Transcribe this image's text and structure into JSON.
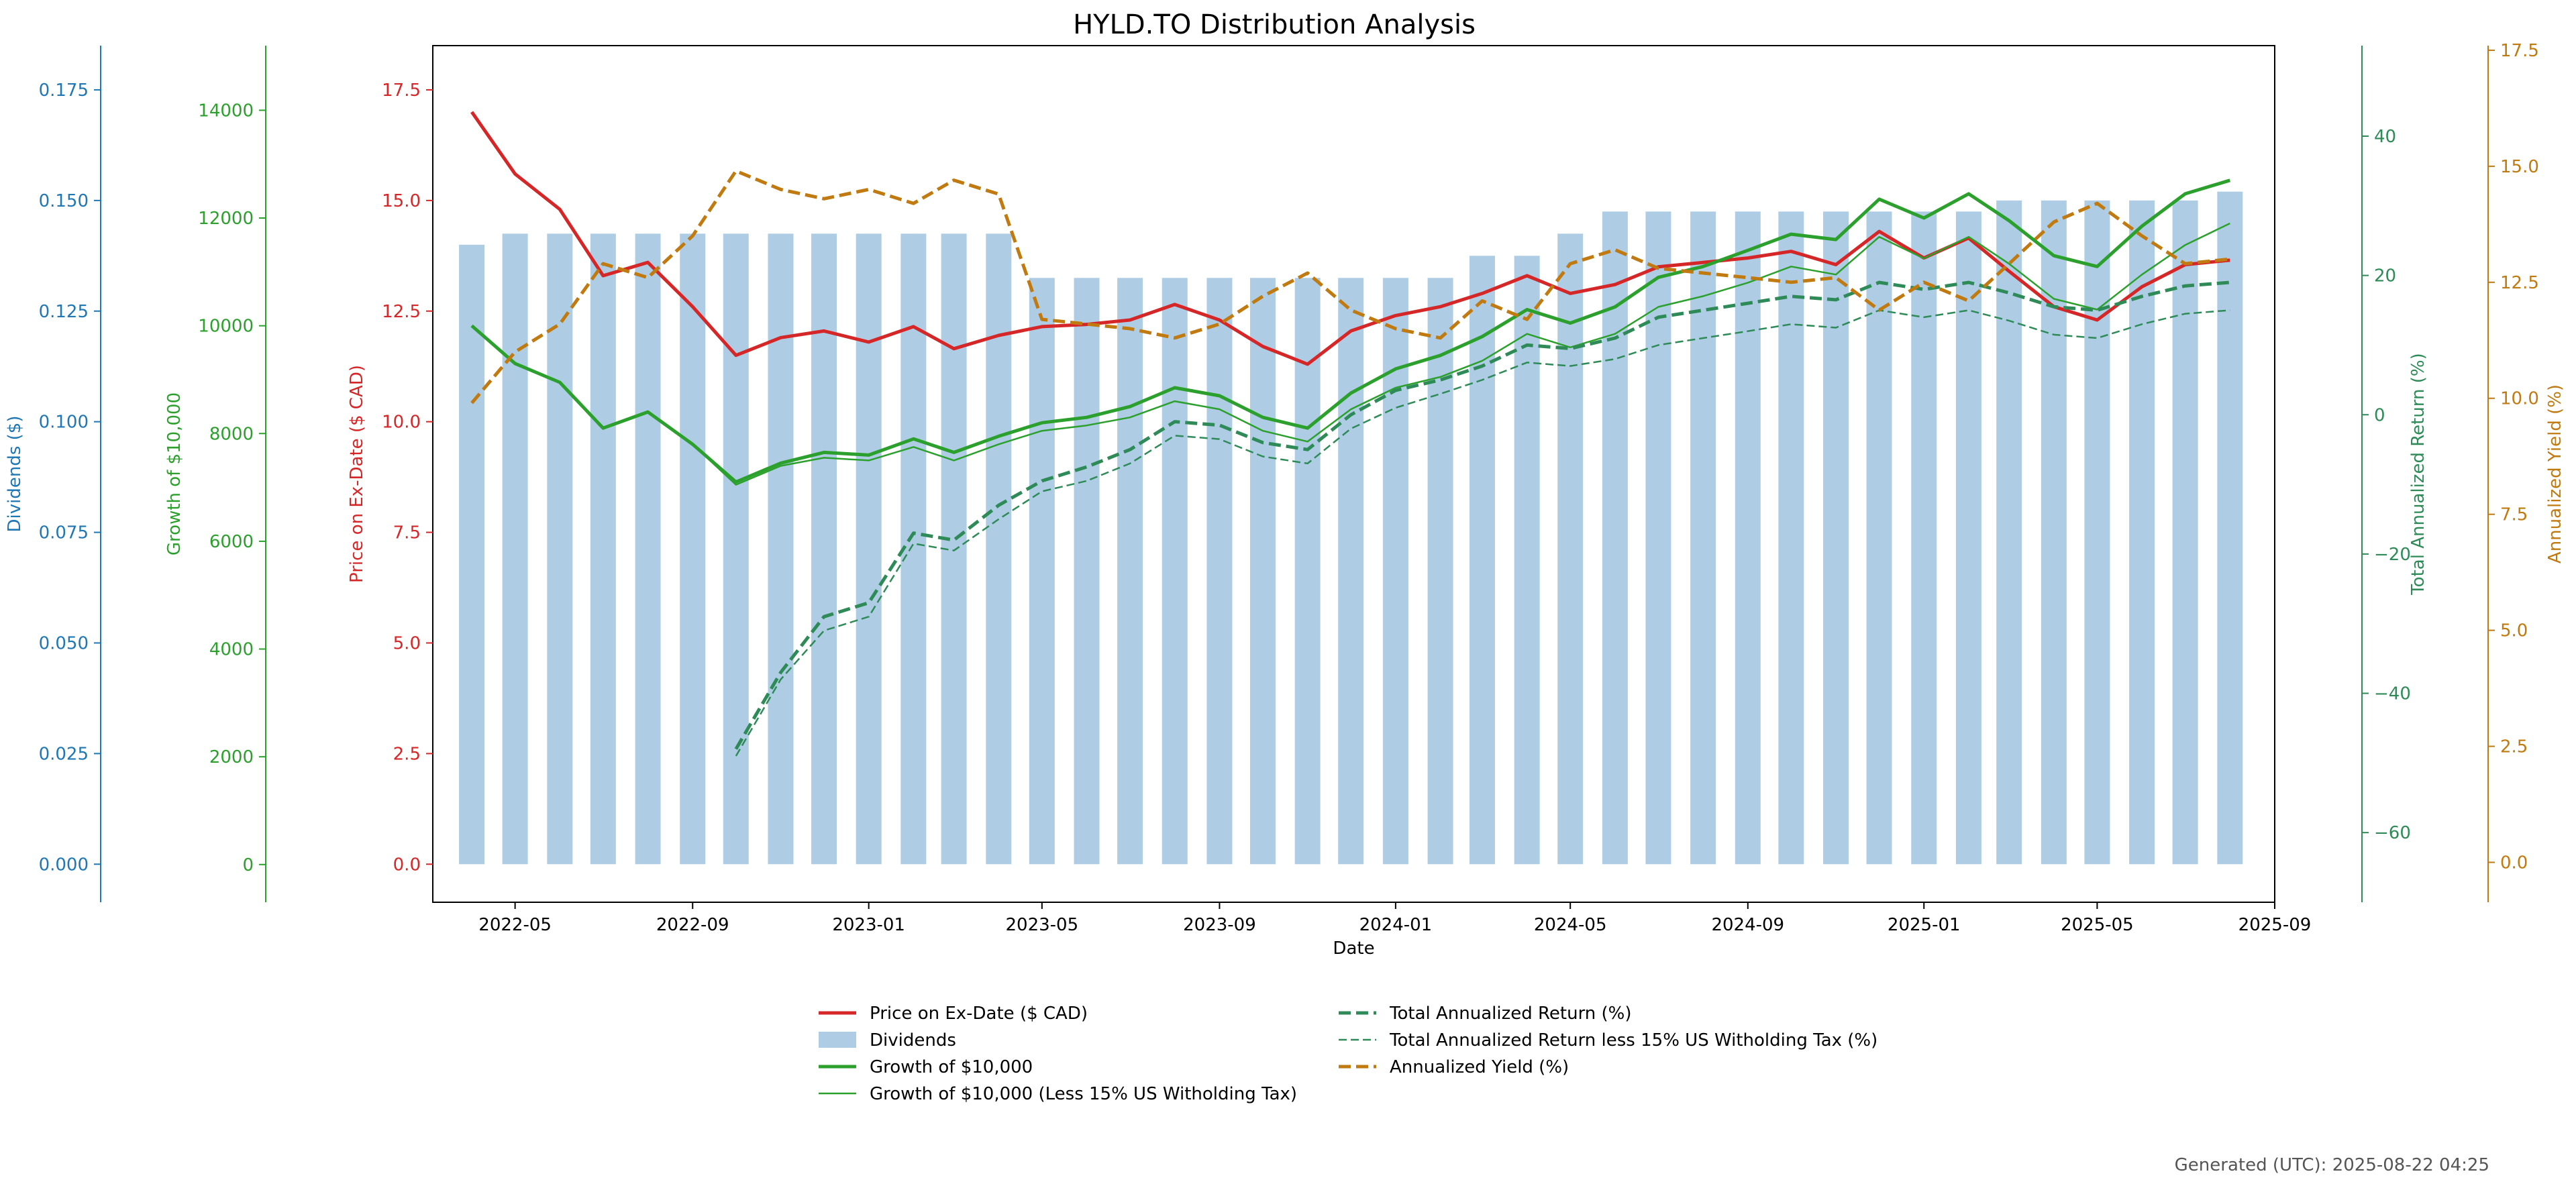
{
  "footer": {
    "generated": "Generated (UTC): 2025-08-22 04:25"
  },
  "colors": {
    "price": "#d62728",
    "dividends": "#1f77b4",
    "growth": "#2ca02c",
    "tar": "#2e8b57",
    "yield": "#c07a10",
    "axis": "#000000"
  },
  "chart_data": {
    "type": "bar+line",
    "title": "HYLD.TO Distribution Analysis",
    "xlabel": "Date",
    "x_ticks": [
      "2022-05",
      "2022-09",
      "2023-01",
      "2023-05",
      "2023-09",
      "2024-01",
      "2024-05",
      "2024-09",
      "2025-01",
      "2025-05",
      "2025-09"
    ],
    "axes": {
      "price": {
        "label": "Price on Ex-Date ($ CAD)",
        "range": [
          -0.86,
          18.5
        ],
        "ticks": [
          "0.0",
          "2.5",
          "5.0",
          "7.5",
          "10.0",
          "12.5",
          "15.0",
          "17.5"
        ],
        "tick_values": [
          0,
          2.5,
          5,
          7.5,
          10,
          12.5,
          15,
          17.5
        ]
      },
      "dividends": {
        "label": "Dividends ($)",
        "range": [
          -0.0086,
          0.185
        ],
        "ticks": [
          "0.000",
          "0.025",
          "0.050",
          "0.075",
          "0.100",
          "0.125",
          "0.150",
          "0.175"
        ],
        "tick_values": [
          0,
          0.025,
          0.05,
          0.075,
          0.1,
          0.125,
          0.15,
          0.175
        ]
      },
      "growth": {
        "label": "Growth of $10,000",
        "range": [
          -700,
          15200
        ],
        "ticks": [
          "0",
          "2000",
          "4000",
          "6000",
          "8000",
          "10000",
          "12000",
          "14000"
        ],
        "tick_values": [
          0,
          2000,
          4000,
          6000,
          8000,
          10000,
          12000,
          14000
        ]
      },
      "tar": {
        "label": "Total Annualized Return (%)",
        "range": [
          -70,
          53
        ],
        "ticks": [
          "−60",
          "−40",
          "−20",
          "0",
          "20",
          "40"
        ],
        "tick_values": [
          -60,
          -40,
          -20,
          0,
          20,
          40
        ]
      },
      "yield": {
        "label": "Annualized Yield (%)",
        "range": [
          -0.86,
          17.6
        ],
        "ticks": [
          "0.0",
          "2.5",
          "5.0",
          "7.5",
          "10.0",
          "12.5",
          "15.0",
          "17.5"
        ],
        "tick_values": [
          0,
          2.5,
          5,
          7.5,
          10,
          12.5,
          15,
          17.5
        ]
      }
    },
    "dates": [
      "2022-04-01",
      "2022-05-01",
      "2022-06-01",
      "2022-07-01",
      "2022-08-01",
      "2022-09-01",
      "2022-10-01",
      "2022-11-01",
      "2022-12-01",
      "2023-01-01",
      "2023-02-01",
      "2023-03-01",
      "2023-04-01",
      "2023-05-01",
      "2023-06-01",
      "2023-07-01",
      "2023-08-01",
      "2023-09-01",
      "2023-10-01",
      "2023-11-01",
      "2023-12-01",
      "2024-01-01",
      "2024-02-01",
      "2024-03-01",
      "2024-04-01",
      "2024-05-01",
      "2024-06-01",
      "2024-07-01",
      "2024-08-01",
      "2024-09-01",
      "2024-10-01",
      "2024-11-01",
      "2024-12-01",
      "2025-01-01",
      "2025-02-01",
      "2025-03-01",
      "2025-04-01",
      "2025-05-01",
      "2025-06-01",
      "2025-07-01",
      "2025-08-01"
    ],
    "series": [
      {
        "name": "Price on Ex-Date ($ CAD)",
        "axis": "price",
        "style": "solid-thick",
        "color": "#d62728",
        "values": [
          17.0,
          15.6,
          14.8,
          13.3,
          13.6,
          12.6,
          11.5,
          11.9,
          12.05,
          11.8,
          12.15,
          11.65,
          11.95,
          12.15,
          12.2,
          12.3,
          12.65,
          12.3,
          11.7,
          11.3,
          12.05,
          12.4,
          12.6,
          12.9,
          13.3,
          12.9,
          13.1,
          13.5,
          13.6,
          13.7,
          13.85,
          13.55,
          14.3,
          13.7,
          14.15,
          13.4,
          12.6,
          12.3,
          13.05,
          13.55,
          13.65
        ]
      },
      {
        "name": "Dividends",
        "axis": "dividends",
        "style": "bar",
        "color": "#aecde4",
        "values": [
          0.14,
          0.1425,
          0.1425,
          0.1425,
          0.1425,
          0.1425,
          0.1425,
          0.1425,
          0.1425,
          0.1425,
          0.1425,
          0.1425,
          0.1425,
          0.1325,
          0.1325,
          0.1325,
          0.1325,
          0.1325,
          0.1325,
          0.1325,
          0.1325,
          0.1325,
          0.1325,
          0.1375,
          0.1375,
          0.1425,
          0.1475,
          0.1475,
          0.1475,
          0.1475,
          0.1475,
          0.1475,
          0.1475,
          0.1475,
          0.1475,
          0.15,
          0.15,
          0.15,
          0.15,
          0.15,
          0.152
        ]
      },
      {
        "name": "Growth of $10,000",
        "axis": "growth",
        "style": "solid-thick",
        "color": "#2ca02c",
        "values": [
          10000,
          9300,
          8950,
          8100,
          8400,
          7800,
          7100,
          7450,
          7650,
          7600,
          7900,
          7650,
          7950,
          8200,
          8300,
          8500,
          8850,
          8700,
          8300,
          8100,
          8750,
          9200,
          9450,
          9800,
          10300,
          10050,
          10350,
          10900,
          11100,
          11400,
          11700,
          11600,
          12350,
          12000,
          12450,
          11950,
          11300,
          11100,
          11850,
          12450,
          12700
        ]
      },
      {
        "name": "Growth of $10,000 (Less 15% US Witholding Tax)",
        "axis": "growth",
        "style": "solid-thin",
        "color": "#2ca02c",
        "values": [
          10000,
          9300,
          8950,
          8100,
          8400,
          7800,
          7050,
          7400,
          7550,
          7500,
          7750,
          7500,
          7800,
          8050,
          8150,
          8300,
          8600,
          8450,
          8050,
          7850,
          8450,
          8850,
          9050,
          9350,
          9850,
          9600,
          9850,
          10350,
          10550,
          10800,
          11100,
          10950,
          11650,
          11250,
          11650,
          11150,
          10500,
          10300,
          10950,
          11500,
          11900
        ]
      },
      {
        "name": "Total Annualized Return (%)",
        "axis": "tar",
        "style": "dashed-thick",
        "color": "#2e8b57",
        "values": [
          null,
          null,
          null,
          null,
          null,
          null,
          -48,
          -37,
          -29,
          -27,
          -17,
          -18,
          -13,
          -9.5,
          -7.5,
          -5,
          -1,
          -1.5,
          -4,
          -5,
          0,
          3.5,
          5,
          7,
          10,
          9.5,
          11,
          14,
          15,
          16,
          17,
          16.5,
          19,
          18,
          19,
          17.5,
          15.5,
          15,
          17,
          18.5,
          19
        ]
      },
      {
        "name": "Total Annualized Return less 15% US Witholding Tax (%)",
        "axis": "tar",
        "style": "dashed-thin",
        "color": "#2e8b57",
        "values": [
          null,
          null,
          null,
          null,
          null,
          null,
          -49,
          -38,
          -31,
          -29,
          -18.5,
          -19.5,
          -15,
          -11,
          -9.5,
          -7,
          -3,
          -3.5,
          -6,
          -7,
          -2,
          1,
          3,
          5,
          7.5,
          7,
          8,
          10,
          11,
          12,
          13,
          12.5,
          15,
          14,
          15,
          13.5,
          11.5,
          11,
          13,
          14.5,
          15
        ]
      },
      {
        "name": "Annualized Yield (%)",
        "axis": "yield",
        "style": "dashed-thick",
        "color": "#c07a10",
        "values": [
          9.9,
          11.0,
          11.6,
          12.9,
          12.6,
          13.5,
          14.9,
          14.5,
          14.3,
          14.5,
          14.2,
          14.7,
          14.4,
          11.7,
          11.6,
          11.5,
          11.3,
          11.6,
          12.2,
          12.7,
          11.9,
          11.5,
          11.3,
          12.1,
          11.7,
          12.9,
          13.2,
          12.8,
          12.7,
          12.6,
          12.5,
          12.6,
          11.9,
          12.5,
          12.1,
          12.9,
          13.8,
          14.2,
          13.5,
          12.9,
          13.0
        ]
      }
    ],
    "legend": {
      "placement": "below",
      "entries": [
        "Price on Ex-Date ($ CAD)",
        "Dividends",
        "Growth of $10,000",
        "Growth of $10,000 (Less 15% US Witholding Tax)",
        "Total Annualized Return (%)",
        "Total Annualized Return less 15% US Witholding Tax (%)",
        "Annualized Yield (%)"
      ]
    },
    "grid": false
  }
}
